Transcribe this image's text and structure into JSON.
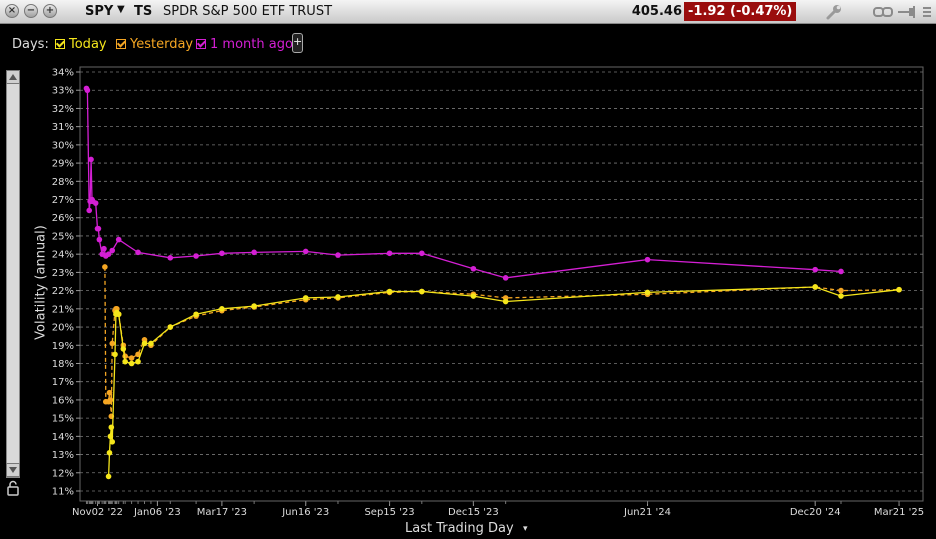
{
  "toolbar": {
    "symbol": "SPY",
    "symbol_caret": "▼",
    "ts": "TS",
    "company": "SPDR S&P 500 ETF TRUST",
    "price": "405.46",
    "change": "-1.92 (-0.47%)",
    "change_color": "#9a0d0d"
  },
  "legend": {
    "days_label": "Days:",
    "items": [
      {
        "label": "Today",
        "color": "#f5e61b"
      },
      {
        "label": "Yesterday",
        "color": "#f5a623"
      },
      {
        "label": "1 month ago",
        "color": "#d41fd4"
      }
    ],
    "add_label": "+"
  },
  "chart_data": {
    "type": "line",
    "ylabel": "Volatility (annual)",
    "xlabel": "Last Trading Day",
    "xlabel_caret": "▾",
    "ylim": [
      11,
      34
    ],
    "y_ticks": [
      "11%",
      "12%",
      "13%",
      "14%",
      "15%",
      "16%",
      "17%",
      "18%",
      "19%",
      "20%",
      "21%",
      "22%",
      "23%",
      "24%",
      "25%",
      "26%",
      "27%",
      "28%",
      "29%",
      "30%",
      "31%",
      "32%",
      "33%",
      "34%"
    ],
    "xlim": [
      "2022-10-14",
      "2025-04-16"
    ],
    "x_ticks": [
      {
        "label": "Nov02 '22",
        "date": "2022-11-02"
      },
      {
        "label": "Jan06 '23",
        "date": "2023-01-06"
      },
      {
        "label": "Mar17 '23",
        "date": "2023-03-17"
      },
      {
        "label": "Jun16 '23",
        "date": "2023-06-16"
      },
      {
        "label": "Sep15 '23",
        "date": "2023-09-15"
      },
      {
        "label": "Dec15 '23",
        "date": "2023-12-15"
      },
      {
        "label": "Jun21 '24",
        "date": "2024-06-21"
      },
      {
        "label": "Dec20 '24",
        "date": "2024-12-20"
      },
      {
        "label": "Mar21 '25",
        "date": "2025-03-21"
      }
    ],
    "grid": true,
    "series": [
      {
        "name": "1 month ago",
        "color": "#d41fd4",
        "style": "solid",
        "points": [
          [
            "2022-10-21",
            33.1
          ],
          [
            "2022-10-22",
            33.0
          ],
          [
            "2022-10-24",
            26.4
          ],
          [
            "2022-10-25",
            26.9
          ],
          [
            "2022-10-26",
            29.2
          ],
          [
            "2022-10-27",
            27.0
          ],
          [
            "2022-10-28",
            26.9
          ],
          [
            "2022-10-31",
            26.8
          ],
          [
            "2022-11-02",
            25.4
          ],
          [
            "2022-11-03",
            25.4
          ],
          [
            "2022-11-04",
            24.8
          ],
          [
            "2022-11-07",
            24.0
          ],
          [
            "2022-11-09",
            24.3
          ],
          [
            "2022-11-11",
            23.9
          ],
          [
            "2022-11-14",
            24.0
          ],
          [
            "2022-11-18",
            24.2
          ],
          [
            "2022-11-25",
            24.8
          ],
          [
            "2022-12-16",
            24.1
          ],
          [
            "2023-01-20",
            23.8
          ],
          [
            "2023-02-17",
            23.9
          ],
          [
            "2023-03-17",
            24.05
          ],
          [
            "2023-04-21",
            24.1
          ],
          [
            "2023-06-16",
            24.15
          ],
          [
            "2023-07-21",
            23.95
          ],
          [
            "2023-09-15",
            24.05
          ],
          [
            "2023-10-20",
            24.05
          ],
          [
            "2023-12-15",
            23.2
          ],
          [
            "2024-01-19",
            22.7
          ],
          [
            "2024-06-21",
            23.7
          ],
          [
            "2024-12-20",
            23.15
          ],
          [
            "2025-01-17",
            23.05
          ]
        ]
      },
      {
        "name": "Yesterday",
        "color": "#f5a623",
        "style": "dashed",
        "points": [
          [
            "2022-11-10",
            23.3
          ],
          [
            "2022-11-11",
            15.9
          ],
          [
            "2022-11-14",
            15.9
          ],
          [
            "2022-11-15",
            16.4
          ],
          [
            "2022-11-16",
            16.0
          ],
          [
            "2022-11-17",
            15.1
          ],
          [
            "2022-11-18",
            19.1
          ],
          [
            "2022-11-21",
            20.9
          ],
          [
            "2022-11-22",
            21.0
          ],
          [
            "2022-11-23",
            21.0
          ],
          [
            "2022-11-25",
            20.7
          ],
          [
            "2022-11-30",
            19.0
          ],
          [
            "2022-12-02",
            18.4
          ],
          [
            "2022-12-09",
            18.3
          ],
          [
            "2022-12-16",
            18.5
          ],
          [
            "2022-12-23",
            19.3
          ],
          [
            "2022-12-30",
            19.0
          ],
          [
            "2023-01-20",
            20.0
          ],
          [
            "2023-02-17",
            20.6
          ],
          [
            "2023-03-17",
            20.9
          ],
          [
            "2023-04-21",
            21.1
          ],
          [
            "2023-06-16",
            21.5
          ],
          [
            "2023-07-21",
            21.6
          ],
          [
            "2023-09-15",
            21.9
          ],
          [
            "2023-10-20",
            21.95
          ],
          [
            "2023-12-15",
            21.8
          ],
          [
            "2024-01-19",
            21.6
          ],
          [
            "2024-06-21",
            21.8
          ],
          [
            "2024-12-20",
            22.2
          ],
          [
            "2025-01-17",
            22.0
          ],
          [
            "2025-03-21",
            22.05
          ]
        ]
      },
      {
        "name": "Today",
        "color": "#f5e61b",
        "style": "solid",
        "points": [
          [
            "2022-11-14",
            11.8
          ],
          [
            "2022-11-15",
            13.1
          ],
          [
            "2022-11-16",
            14.0
          ],
          [
            "2022-11-17",
            14.5
          ],
          [
            "2022-11-18",
            13.7
          ],
          [
            "2022-11-21",
            18.5
          ],
          [
            "2022-11-22",
            20.7
          ],
          [
            "2022-11-23",
            20.8
          ],
          [
            "2022-11-25",
            20.7
          ],
          [
            "2022-11-30",
            18.8
          ],
          [
            "2022-12-02",
            18.1
          ],
          [
            "2022-12-09",
            18.0
          ],
          [
            "2022-12-16",
            18.1
          ],
          [
            "2022-12-23",
            19.1
          ],
          [
            "2022-12-30",
            19.1
          ],
          [
            "2023-01-20",
            20.0
          ],
          [
            "2023-02-17",
            20.7
          ],
          [
            "2023-03-17",
            21.0
          ],
          [
            "2023-04-21",
            21.15
          ],
          [
            "2023-06-16",
            21.6
          ],
          [
            "2023-07-21",
            21.65
          ],
          [
            "2023-09-15",
            21.95
          ],
          [
            "2023-10-20",
            21.95
          ],
          [
            "2023-12-15",
            21.7
          ],
          [
            "2024-01-19",
            21.4
          ],
          [
            "2024-06-21",
            21.9
          ],
          [
            "2024-12-20",
            22.2
          ],
          [
            "2025-01-17",
            21.7
          ],
          [
            "2025-03-21",
            22.05
          ]
        ]
      }
    ]
  }
}
